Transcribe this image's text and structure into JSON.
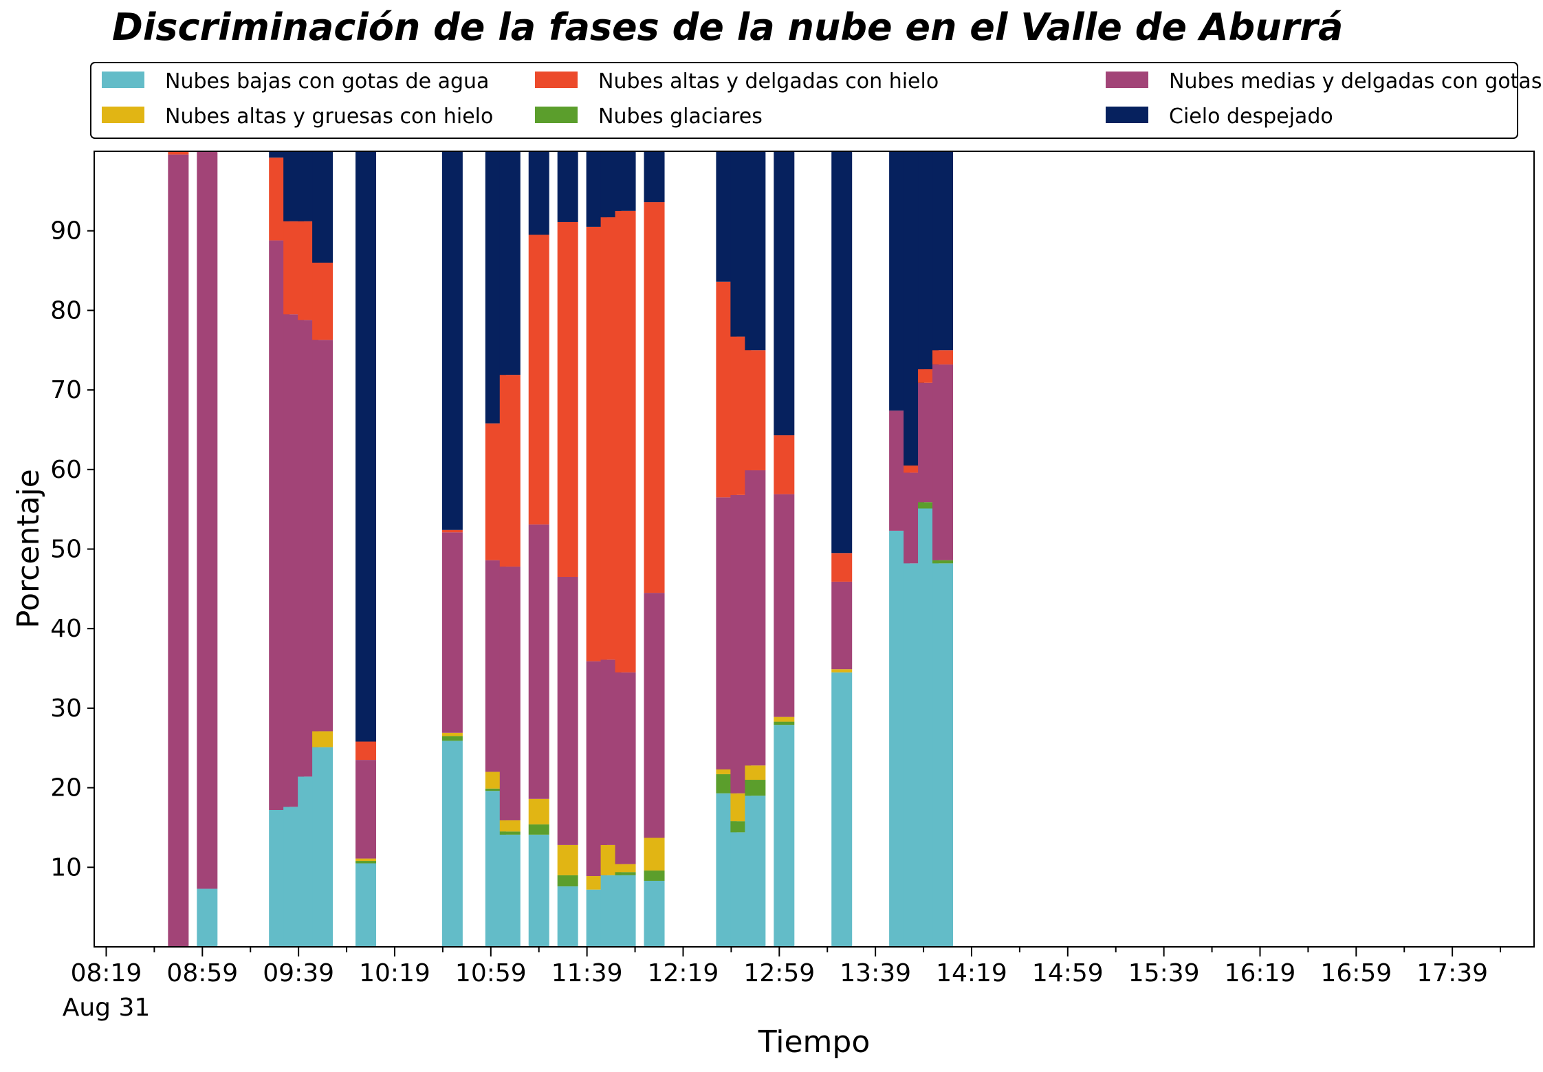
{
  "chart_data": {
    "type": "bar",
    "stacked": true,
    "title": "Discriminación de la fases de la nube en el Valle de Aburrá",
    "xlabel": "Tiempo",
    "ylabel": "Porcentaje",
    "ylim": [
      0,
      100
    ],
    "yticks": [
      10,
      20,
      30,
      40,
      50,
      60,
      70,
      80,
      90
    ],
    "xlim": [
      "08:14",
      "18:13"
    ],
    "xticks": [
      {
        "time": "08:19",
        "label": "08:19",
        "sublabel": "Aug 31"
      },
      {
        "time": "08:59",
        "label": "08:59",
        "sublabel": ""
      },
      {
        "time": "09:39",
        "label": "09:39",
        "sublabel": ""
      },
      {
        "time": "10:19",
        "label": "10:19",
        "sublabel": ""
      },
      {
        "time": "10:59",
        "label": "10:59",
        "sublabel": ""
      },
      {
        "time": "11:39",
        "label": "11:39",
        "sublabel": ""
      },
      {
        "time": "12:19",
        "label": "12:19",
        "sublabel": ""
      },
      {
        "time": "12:59",
        "label": "12:59",
        "sublabel": ""
      },
      {
        "time": "13:39",
        "label": "13:39",
        "sublabel": ""
      },
      {
        "time": "14:19",
        "label": "14:19",
        "sublabel": ""
      },
      {
        "time": "14:59",
        "label": "14:59",
        "sublabel": ""
      },
      {
        "time": "15:39",
        "label": "15:39",
        "sublabel": ""
      },
      {
        "time": "16:19",
        "label": "16:19",
        "sublabel": ""
      },
      {
        "time": "16:59",
        "label": "16:59",
        "sublabel": ""
      },
      {
        "time": "17:39",
        "label": "17:39",
        "sublabel": ""
      }
    ],
    "minor_tick_times": [
      "08:39",
      "09:19",
      "09:59",
      "10:39",
      "11:19",
      "11:59",
      "12:39",
      "13:19",
      "13:59",
      "14:39",
      "15:19",
      "15:59",
      "16:39",
      "17:19",
      "17:59"
    ],
    "legend_position": "top",
    "series": [
      {
        "name": "Nubes bajas con gotas de agua",
        "color": "#63BCC8"
      },
      {
        "name": "Nubes glaciares",
        "color": "#5B9E2C"
      },
      {
        "name": "Nubes altas y gruesas con hielo",
        "color": "#E1B514"
      },
      {
        "name": "Nubes medias y delgadas con gotas de agua",
        "color": "#A24477"
      },
      {
        "name": "Nubes altas y delgadas con hielo",
        "color": "#EC4A2B"
      },
      {
        "name": "Cielo despejado",
        "color": "#06215E"
      }
    ],
    "legend_order": [
      0,
      2,
      4,
      1,
      3,
      5
    ],
    "bars": [
      {
        "time": "08:49",
        "values": [
          0,
          0,
          0,
          99.6,
          0.4,
          0
        ]
      },
      {
        "time": "09:01",
        "values": [
          7.3,
          0,
          0,
          92.7,
          0,
          0
        ]
      },
      {
        "time": "09:31",
        "values": [
          17.2,
          0,
          0,
          71.6,
          10.4,
          0.8
        ]
      },
      {
        "time": "09:37",
        "values": [
          17.6,
          0,
          0,
          61.9,
          11.7,
          8.8
        ]
      },
      {
        "time": "09:43",
        "values": [
          21.4,
          0,
          0,
          57.4,
          12.4,
          8.8
        ]
      },
      {
        "time": "09:49",
        "values": [
          25.1,
          0,
          2.0,
          49.2,
          9.7,
          14.0
        ]
      },
      {
        "time": "10:07",
        "values": [
          10.5,
          0.3,
          0.3,
          12.4,
          2.3,
          74.2
        ]
      },
      {
        "time": "10:43",
        "values": [
          25.9,
          0.6,
          0.4,
          25.2,
          0.3,
          47.6
        ]
      },
      {
        "time": "11:01",
        "values": [
          19.6,
          0.3,
          2.1,
          26.6,
          17.2,
          34.2
        ]
      },
      {
        "time": "11:07",
        "values": [
          14.1,
          0.4,
          1.4,
          31.9,
          24.1,
          28.1
        ]
      },
      {
        "time": "11:19",
        "values": [
          14.1,
          1.3,
          3.2,
          34.5,
          36.4,
          10.5
        ]
      },
      {
        "time": "11:31",
        "values": [
          7.6,
          1.4,
          3.8,
          33.7,
          44.6,
          8.9
        ]
      },
      {
        "time": "11:43",
        "values": [
          7.2,
          0,
          1.7,
          27.0,
          54.6,
          9.5
        ]
      },
      {
        "time": "11:49",
        "values": [
          9.0,
          0,
          3.8,
          23.3,
          55.6,
          8.3
        ]
      },
      {
        "time": "11:55",
        "values": [
          9.0,
          0.4,
          1.0,
          24.1,
          58.0,
          7.5
        ]
      },
      {
        "time": "12:07",
        "values": [
          8.3,
          1.3,
          4.1,
          30.8,
          49.1,
          6.4
        ]
      },
      {
        "time": "12:37",
        "values": [
          19.3,
          2.4,
          0.6,
          34.2,
          27.1,
          16.4
        ]
      },
      {
        "time": "12:43",
        "values": [
          14.4,
          1.4,
          3.5,
          37.5,
          19.9,
          23.3
        ]
      },
      {
        "time": "12:49",
        "values": [
          19.0,
          2.0,
          1.8,
          37.1,
          15.1,
          25.0
        ]
      },
      {
        "time": "13:01",
        "values": [
          27.9,
          0.4,
          0.6,
          28.0,
          7.4,
          35.7
        ]
      },
      {
        "time": "13:25",
        "values": [
          34.5,
          0,
          0.4,
          11.0,
          3.6,
          50.5
        ]
      },
      {
        "time": "13:49",
        "values": [
          52.3,
          0,
          0,
          15.1,
          0,
          32.6
        ]
      },
      {
        "time": "13:55",
        "values": [
          48.2,
          0,
          0,
          11.4,
          0.9,
          39.5
        ]
      },
      {
        "time": "14:01",
        "values": [
          55.1,
          0.8,
          0,
          15.0,
          1.7,
          27.4
        ]
      },
      {
        "time": "14:07",
        "values": [
          48.2,
          0.4,
          0,
          24.6,
          1.8,
          25.0
        ]
      }
    ]
  }
}
